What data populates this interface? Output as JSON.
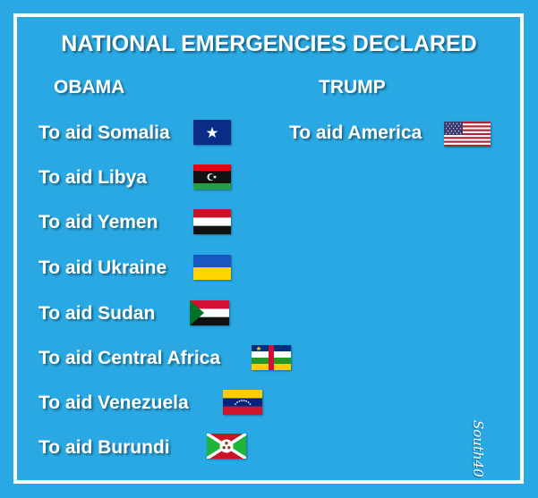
{
  "title": "NATIONAL EMERGENCIES DECLARED",
  "obama": {
    "heading": "OBAMA",
    "items": [
      {
        "label": "To aid Somalia",
        "flag": "somalia-flag-icon"
      },
      {
        "label": "To aid Libya",
        "flag": "libya-flag-icon"
      },
      {
        "label": "To aid Yemen",
        "flag": "yemen-flag-icon"
      },
      {
        "label": "To aid Ukraine",
        "flag": "ukraine-flag-icon"
      },
      {
        "label": "To aid Sudan",
        "flag": "sudan-flag-icon"
      },
      {
        "label": "To aid Central Africa",
        "flag": "central-african-republic-flag-icon"
      },
      {
        "label": "To aid Venezuela",
        "flag": "venezuela-flag-icon"
      },
      {
        "label": "To aid Burundi",
        "flag": "burundi-flag-icon"
      }
    ]
  },
  "trump": {
    "heading": "TRUMP",
    "items": [
      {
        "label": "To aid America",
        "flag": "usa-flag-icon"
      }
    ]
  },
  "signature": "South40",
  "colors": {
    "background": "#29a8e3",
    "text": "#ffffff"
  }
}
